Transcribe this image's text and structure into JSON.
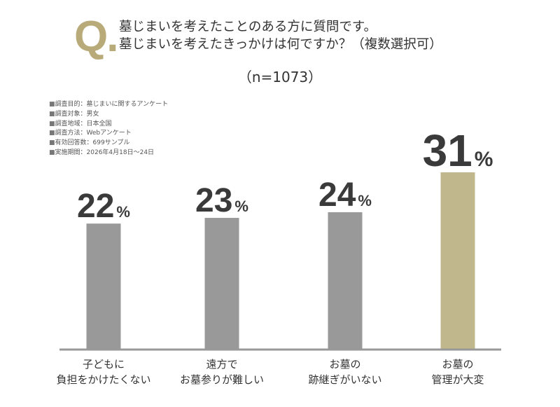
{
  "question": {
    "mark": "Q.",
    "line1": "墓じまいを考えたことのある方に質問です。",
    "line2": "墓じまいを考えたきっかけは何ですか？（複数選択可）"
  },
  "sample_size": "（n=1073）",
  "survey_notes": [
    "調査目的：墓じまいに関するアンケート",
    "調査対象：男女",
    "調査地域：日本全国",
    "調査方法：Webアンケート",
    "有効回答数：699サンプル",
    "実施期間：2026年4月18日～24日"
  ],
  "chart_data": {
    "type": "bar",
    "categories": [
      [
        "子どもに",
        "負担をかけたくない"
      ],
      [
        "遠方で",
        "お墓参りが難しい"
      ],
      [
        "お墓の",
        "跡継ぎがいない"
      ],
      [
        "お墓の",
        "管理が大変"
      ]
    ],
    "values": [
      22,
      23,
      24,
      31
    ],
    "value_labels": [
      "22",
      "23",
      "24",
      "31"
    ],
    "unit": "%",
    "highlight_index": 3,
    "ylim": [
      0,
      31
    ],
    "colors": {
      "bar": "#999999",
      "highlight": "#c0b88c",
      "baseline": "#999999",
      "value_text": "#3a3a3a",
      "accent": "#b9ab79"
    }
  }
}
